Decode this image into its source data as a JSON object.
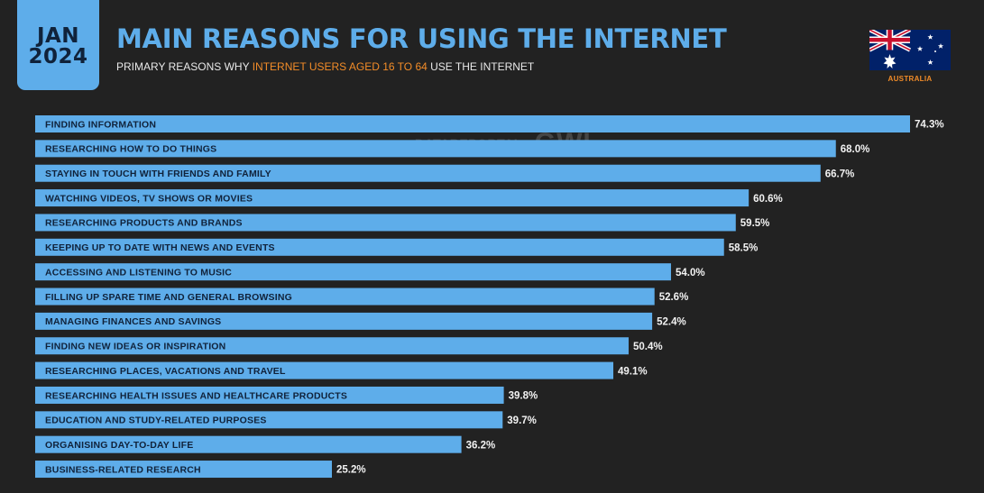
{
  "badge": {
    "month": "JAN",
    "year": "2024"
  },
  "header": {
    "title": "MAIN REASONS FOR USING THE INTERNET",
    "subtitle_prefix": "PRIMARY REASONS WHY",
    "subtitle_highlight": "INTERNET USERS AGED 16 TO 64",
    "subtitle_suffix": "USE THE INTERNET"
  },
  "country": {
    "name": "AUSTRALIA",
    "flag_icon": "australia-flag-icon"
  },
  "watermark": {
    "datareportal": "DATAREPORTAL",
    "gwi": "GWI."
  },
  "colors": {
    "background": "#222222",
    "accent": "#5eadea",
    "highlight": "#f28c28",
    "bar_text": "#10223a",
    "value_text": "#f2f2f2"
  },
  "chart_data": {
    "type": "bar",
    "orientation": "horizontal",
    "value_suffix": "%",
    "xlim": [
      0,
      100
    ],
    "grid": false,
    "categories": [
      "FINDING INFORMATION",
      "RESEARCHING HOW TO DO THINGS",
      "STAYING IN TOUCH WITH FRIENDS AND FAMILY",
      "WATCHING VIDEOS, TV SHOWS OR MOVIES",
      "RESEARCHING PRODUCTS AND BRANDS",
      "KEEPING UP TO DATE WITH NEWS AND EVENTS",
      "ACCESSING AND LISTENING TO MUSIC",
      "FILLING UP SPARE TIME AND GENERAL BROWSING",
      "MANAGING FINANCES AND SAVINGS",
      "FINDING NEW IDEAS OR INSPIRATION",
      "RESEARCHING PLACES, VACATIONS AND TRAVEL",
      "RESEARCHING HEALTH ISSUES AND HEALTHCARE PRODUCTS",
      "EDUCATION AND STUDY-RELATED PURPOSES",
      "ORGANISING DAY-TO-DAY LIFE",
      "BUSINESS-RELATED RESEARCH"
    ],
    "values": [
      74.3,
      68.0,
      66.7,
      60.6,
      59.5,
      58.5,
      54.0,
      52.6,
      52.4,
      50.4,
      49.1,
      39.8,
      39.7,
      36.2,
      25.2
    ],
    "labels": [
      "74.3%",
      "68.0%",
      "66.7%",
      "60.6%",
      "59.5%",
      "58.5%",
      "54.0%",
      "52.6%",
      "52.4%",
      "50.4%",
      "49.1%",
      "39.8%",
      "39.7%",
      "36.2%",
      "25.2%"
    ]
  }
}
